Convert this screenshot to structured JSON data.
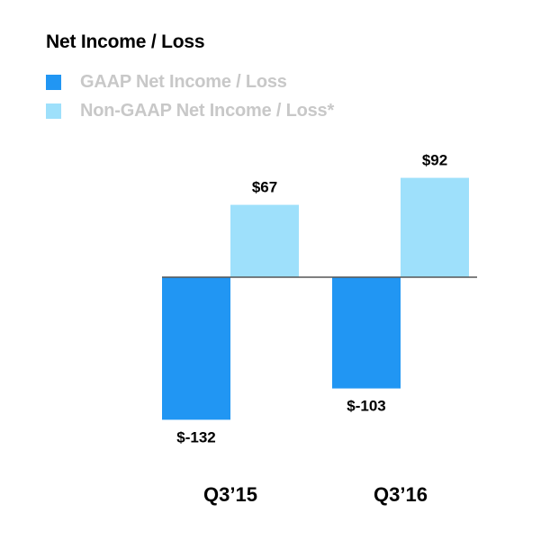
{
  "chart_data": {
    "type": "bar",
    "title": "Net Income / Loss",
    "categories": [
      "Q3’15",
      "Q3’16"
    ],
    "series": [
      {
        "name": "GAAP Net Income / Loss",
        "values": [
          -132,
          -103
        ],
        "labels": [
          "$-132",
          "$-103"
        ],
        "color": "#2196f3"
      },
      {
        "name": "Non-GAAP Net Income / Loss*",
        "values": [
          67,
          92
        ],
        "labels": [
          "$67",
          "$92"
        ],
        "color": "#9ee0fb"
      }
    ],
    "xlabel": "",
    "ylabel": "",
    "ylim": [
      -132,
      92
    ],
    "grid": false,
    "legend": "top-left",
    "baseline_color": "#555555"
  }
}
